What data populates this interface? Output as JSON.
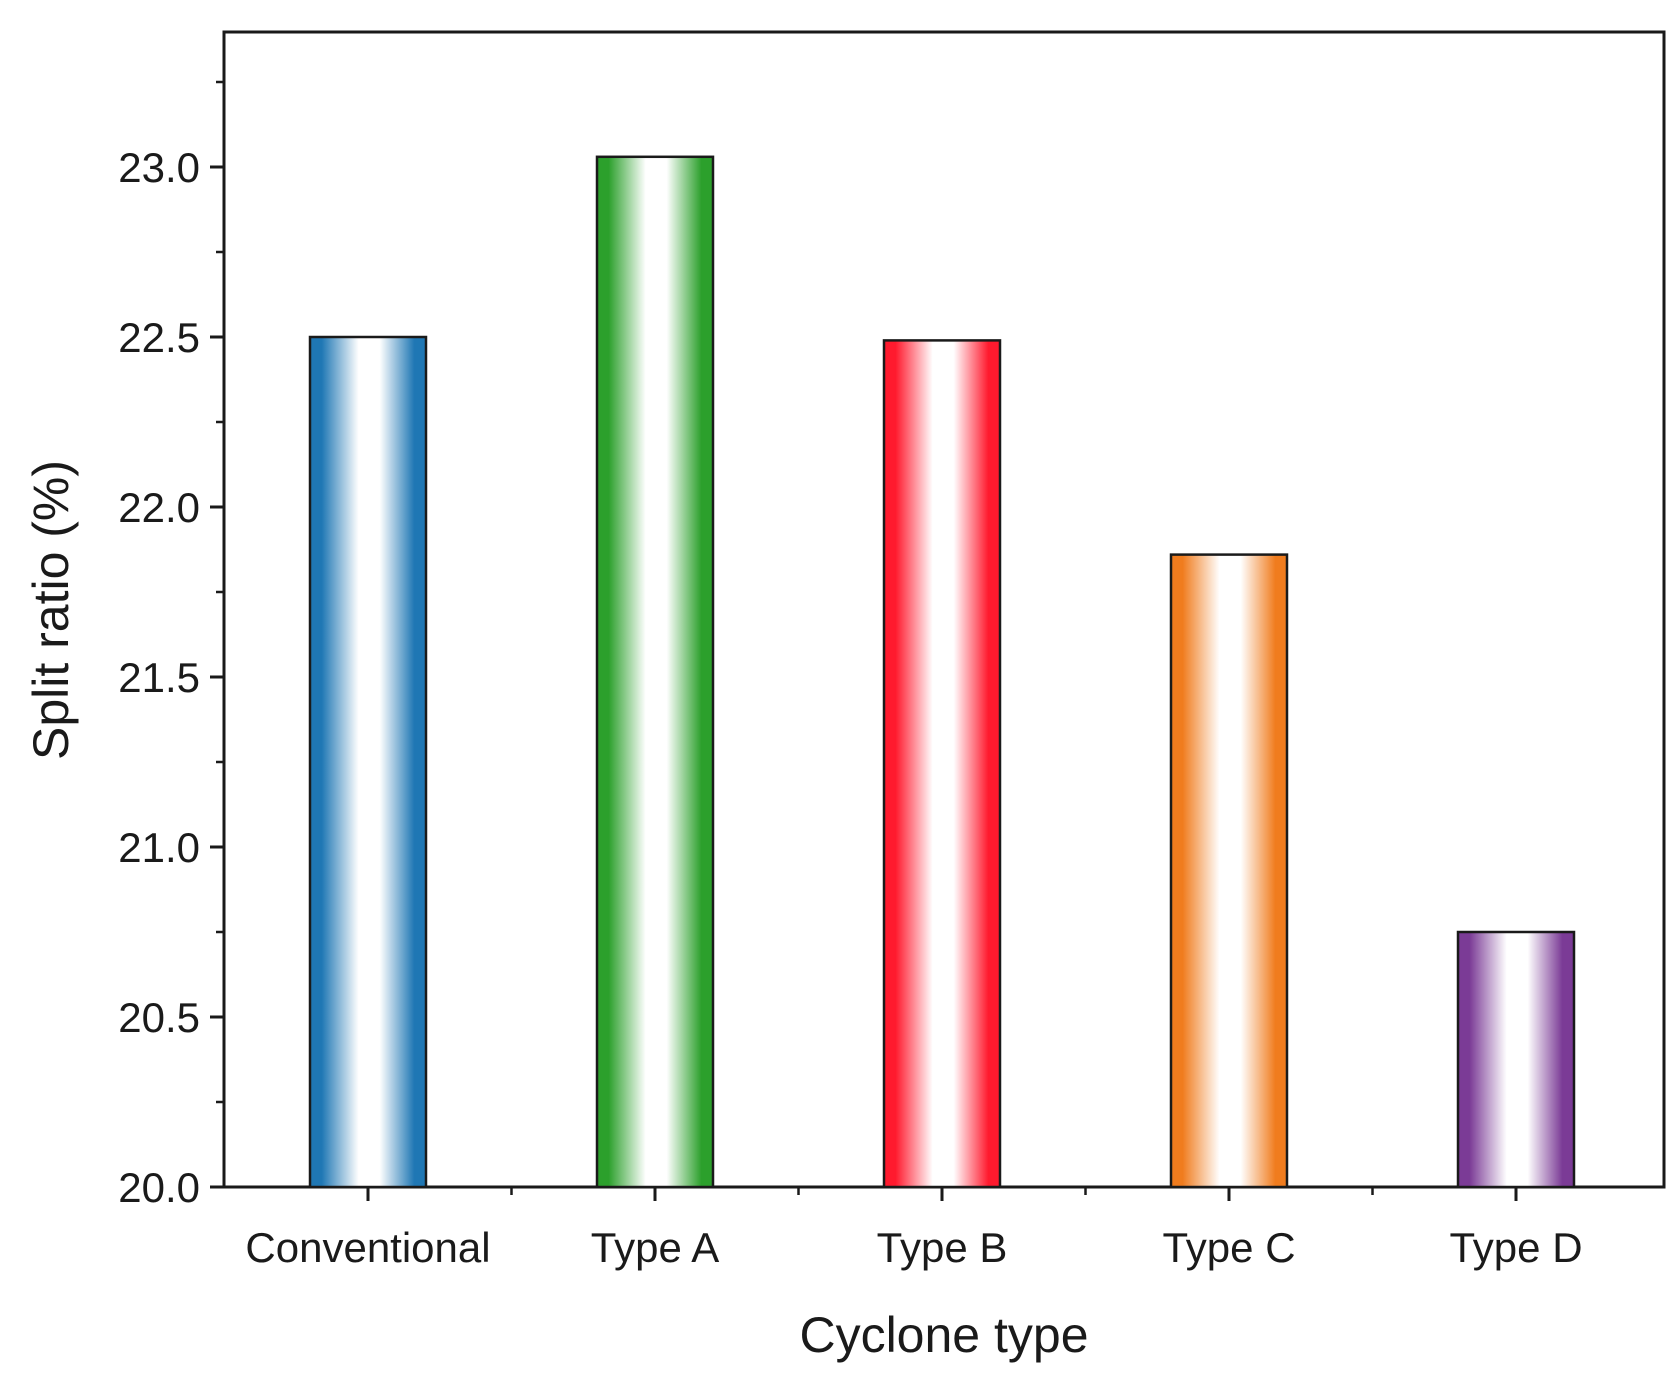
{
  "chart_data": {
    "type": "bar",
    "title": "",
    "xlabel": "Cyclone type",
    "ylabel": "Split ratio (%)",
    "categories": [
      "Conventional",
      "Type A",
      "Type B",
      "Type C",
      "Type D"
    ],
    "values": [
      22.5,
      23.03,
      22.49,
      21.86,
      20.75
    ],
    "colors": [
      "#1f77b4",
      "#2ca02c",
      "#ff1a2e",
      "#f07c1e",
      "#7b3b96"
    ],
    "ylim": [
      20.0,
      23.4
    ],
    "yticks": [
      "20.0",
      "20.5",
      "21.0",
      "21.5",
      "22.0",
      "22.5",
      "23.0"
    ],
    "ytick_values": [
      20.0,
      20.5,
      21.0,
      21.5,
      22.0,
      22.5,
      23.0
    ],
    "grid": false,
    "legend": "none"
  }
}
